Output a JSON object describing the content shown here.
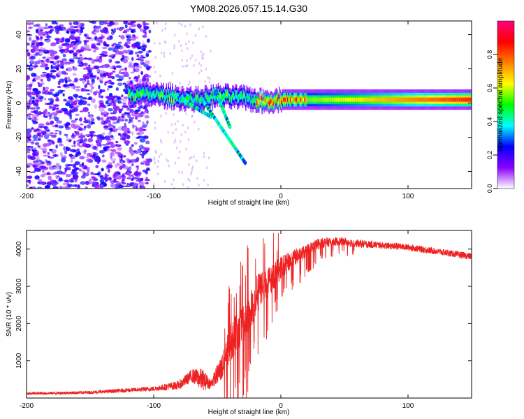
{
  "title": "YM08.2026.057.15.14.G30",
  "colors": {
    "snr_line": "#ee2222",
    "axis": "#000000",
    "background": "#ffffff"
  },
  "chart_data": [
    {
      "type": "heatmap",
      "name": "spectrogram",
      "xlabel": "Height of straight line (km)",
      "ylabel": "Frequency (Hz)",
      "xlim": [
        -200,
        150
      ],
      "ylim": [
        -50,
        48
      ],
      "x_ticks": [
        -200,
        -100,
        0,
        100
      ],
      "x_tick_labels": [
        "-200",
        "-100",
        "0",
        "100"
      ],
      "y_ticks": [
        -40,
        -20,
        0,
        20,
        40
      ],
      "y_tick_labels": [
        "-40",
        "-20",
        "0",
        "20",
        "40"
      ],
      "colorbar": {
        "label": "Normalized spectral amplitude",
        "range": [
          0,
          1
        ],
        "ticks": [
          0,
          0.2,
          0.4,
          0.6,
          0.8
        ],
        "tick_labels": [
          "0.0",
          "0.2",
          "0.4",
          "0.6",
          "0.8"
        ],
        "stops": [
          "#ffffff",
          "#8a00ff",
          "#0000ff",
          "#00ffff",
          "#00ff00",
          "#ffff00",
          "#ff8000",
          "#ff0000",
          "#ff0080"
        ]
      },
      "description_values": {
        "noise_region_x": [
          -200,
          -103
        ],
        "ridge": [
          {
            "x": -120,
            "y": 5
          },
          {
            "x": -100,
            "y": 5
          },
          {
            "x": -80,
            "y": 3
          },
          {
            "x": -65,
            "y": 2
          },
          {
            "x": -50,
            "y": 4
          },
          {
            "x": -30,
            "y": 3
          },
          {
            "x": -15,
            "y": 1
          },
          {
            "x": 0,
            "y": 2
          },
          {
            "x": 50,
            "y": 2
          },
          {
            "x": 100,
            "y": 2
          },
          {
            "x": 150,
            "y": 2
          }
        ]
      }
    },
    {
      "type": "line",
      "name": "snr",
      "xlabel": "Height of straight line (km)",
      "ylabel": "SNR (10 * v/v)",
      "xlim": [
        -200,
        150
      ],
      "ylim": [
        0,
        4500
      ],
      "x_ticks": [
        -200,
        -100,
        0,
        100
      ],
      "x_tick_labels": [
        "-200",
        "-100",
        "0",
        "100"
      ],
      "y_ticks": [
        1000,
        2000,
        3000,
        4000
      ],
      "y_tick_labels": [
        "1000",
        "2000",
        "3000",
        "4000"
      ],
      "series": [
        {
          "name": "SNR",
          "envelope_x": [
            -200,
            -150,
            -100,
            -80,
            -70,
            -62,
            -55,
            -45,
            -40,
            -35,
            -30,
            -25,
            -20,
            -15,
            -10,
            -5,
            0,
            10,
            20,
            30,
            40,
            50,
            60,
            80,
            100,
            120,
            150
          ],
          "envelope_mean": [
            120,
            150,
            250,
            350,
            600,
            500,
            380,
            900,
            1500,
            1800,
            2000,
            2300,
            2700,
            3000,
            3100,
            3300,
            3500,
            3750,
            3950,
            4150,
            4200,
            4200,
            4150,
            4100,
            4050,
            3950,
            3800
          ],
          "envelope_spread": [
            60,
            70,
            110,
            200,
            300,
            500,
            200,
            700,
            900,
            1000,
            1000,
            1000,
            900,
            800,
            700,
            600,
            500,
            400,
            300,
            250,
            200,
            180,
            180,
            150,
            150,
            150,
            150
          ]
        }
      ]
    }
  ]
}
